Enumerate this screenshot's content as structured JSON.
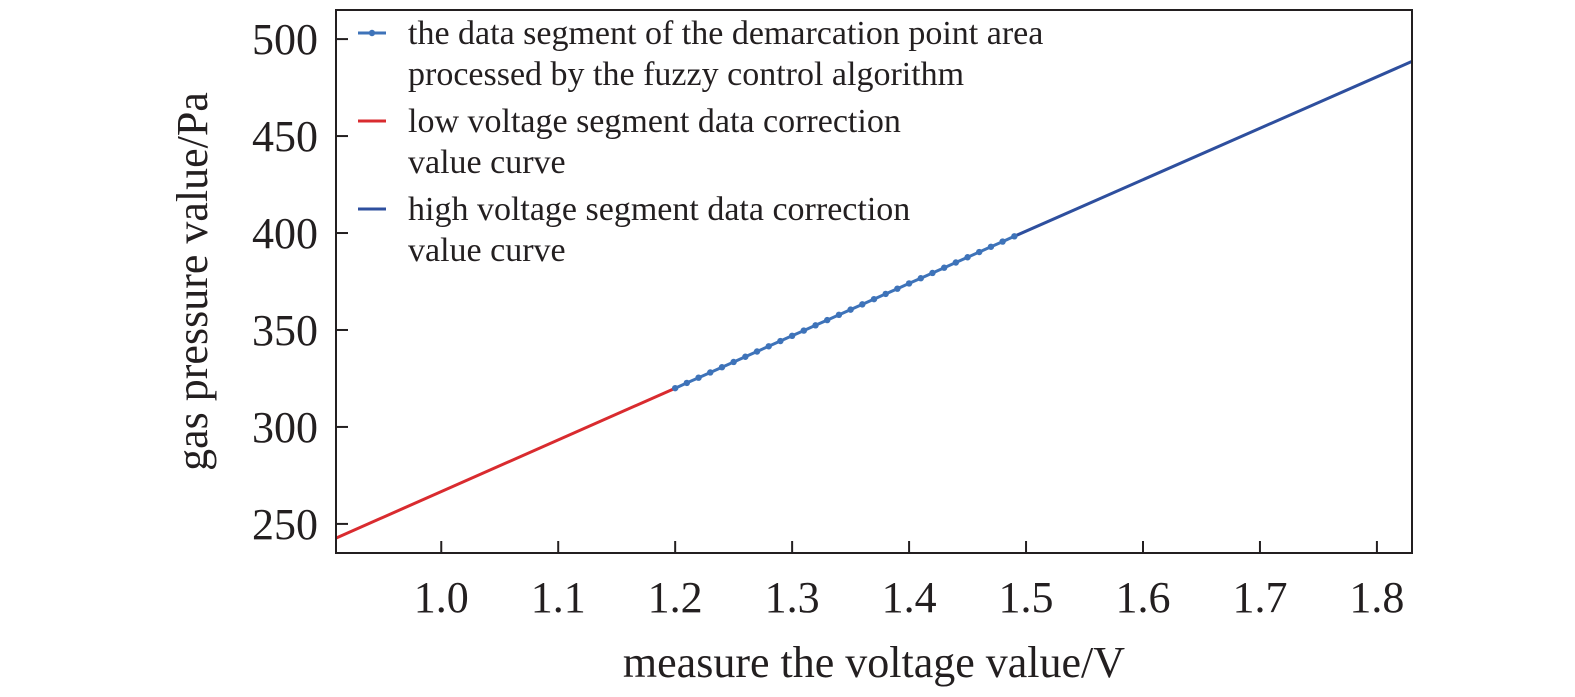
{
  "chart_data": {
    "type": "line",
    "title": "",
    "xlabel": "measure the voltage value/V",
    "ylabel": "gas pressure value/Pa",
    "xlim": [
      0.91,
      1.83
    ],
    "ylim": [
      235,
      515
    ],
    "x_ticks": [
      1.0,
      1.1,
      1.2,
      1.3,
      1.4,
      1.5,
      1.6,
      1.7,
      1.8
    ],
    "x_tick_labels": [
      "1.0",
      "1.1",
      "1.2",
      "1.3",
      "1.4",
      "1.5",
      "1.6",
      "1.7",
      "1.8"
    ],
    "y_ticks": [
      250,
      300,
      350,
      400,
      450,
      500
    ],
    "y_tick_labels": [
      "250",
      "300",
      "350",
      "400",
      "450",
      "500"
    ],
    "grid": false,
    "legend_position": "top-left",
    "series": [
      {
        "name_lines": [
          "the data segment of the demarcation point area",
          "processed by the fuzzy control algorithm"
        ],
        "style": "line-markers",
        "color": "#3e73b9",
        "x": [
          1.2,
          1.21,
          1.22,
          1.23,
          1.24,
          1.25,
          1.26,
          1.27,
          1.28,
          1.29,
          1.3,
          1.31,
          1.32,
          1.33,
          1.34,
          1.35,
          1.36,
          1.37,
          1.38,
          1.39,
          1.4,
          1.41,
          1.42,
          1.43,
          1.44,
          1.45,
          1.46,
          1.47,
          1.48,
          1.49
        ],
        "y": [
          320.0,
          322.7,
          325.4,
          328.1,
          330.8,
          333.5,
          336.2,
          338.9,
          341.6,
          344.3,
          347.0,
          349.7,
          352.4,
          355.1,
          357.8,
          360.5,
          363.2,
          365.9,
          368.6,
          371.3,
          374.0,
          376.7,
          379.4,
          382.1,
          384.8,
          387.5,
          390.2,
          392.9,
          395.6,
          398.3
        ]
      },
      {
        "name_lines": [
          "low voltage segment data correction",
          "value curve"
        ],
        "style": "line",
        "color": "#d92b2f",
        "x": [
          0.91,
          1.2
        ],
        "y": [
          242.7,
          320.0
        ]
      },
      {
        "name_lines": [
          "high voltage segment data correction",
          "value curve"
        ],
        "style": "line",
        "color": "#2e4f9e",
        "x": [
          1.49,
          1.83
        ],
        "y": [
          398.3,
          488.5
        ]
      }
    ]
  }
}
